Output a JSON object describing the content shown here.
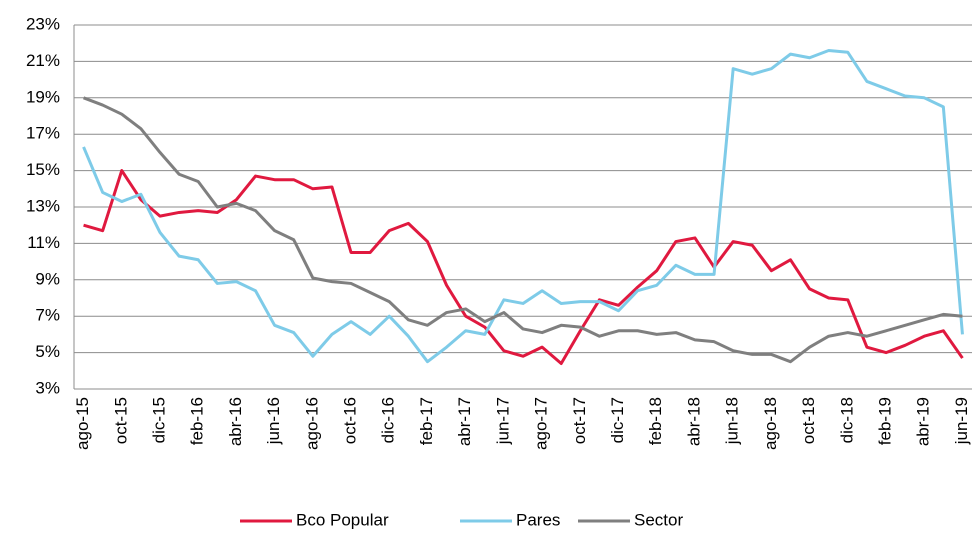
{
  "chart_data": {
    "type": "line",
    "categories": [
      "ago-15",
      null,
      "oct-15",
      null,
      "dic-15",
      null,
      "feb-16",
      null,
      "abr-16",
      null,
      "jun-16",
      null,
      "ago-16",
      null,
      "oct-16",
      null,
      "dic-16",
      null,
      "feb-17",
      null,
      "abr-17",
      null,
      "jun-17",
      null,
      "ago-17",
      null,
      "oct-17",
      null,
      "dic-17",
      null,
      "feb-18",
      null,
      "abr-18",
      null,
      "jun-18",
      null,
      "ago-18",
      null,
      "oct-18",
      null,
      "dic-18",
      null,
      "feb-19",
      null,
      "abr-19",
      null,
      "jun-19"
    ],
    "series": [
      {
        "name": "Bco Popular",
        "color": "#e0193f",
        "values": [
          12.0,
          11.7,
          15.0,
          13.4,
          12.5,
          12.7,
          12.8,
          12.7,
          13.4,
          14.7,
          14.5,
          14.5,
          14.0,
          14.1,
          10.5,
          10.5,
          11.7,
          12.1,
          11.1,
          8.7,
          7.0,
          6.4,
          5.1,
          4.8,
          5.3,
          4.4,
          6.2,
          7.9,
          7.6,
          8.6,
          9.5,
          11.1,
          11.3,
          9.7,
          11.1,
          10.9,
          9.5,
          10.1,
          8.5,
          8.0,
          7.9,
          5.3,
          5.0,
          5.4,
          5.9,
          6.2,
          4.7
        ]
      },
      {
        "name": "Pares",
        "color": "#7ecbe8",
        "values": [
          16.3,
          13.8,
          13.3,
          13.7,
          11.6,
          10.3,
          10.1,
          8.8,
          8.9,
          8.4,
          6.5,
          6.1,
          4.8,
          6.0,
          6.7,
          6.0,
          7.0,
          5.9,
          4.5,
          5.3,
          6.2,
          6.0,
          7.9,
          7.7,
          8.4,
          7.7,
          7.8,
          7.8,
          7.3,
          8.4,
          8.7,
          9.8,
          9.3,
          9.3,
          20.6,
          20.3,
          20.6,
          21.4,
          21.2,
          21.6,
          21.5,
          19.9,
          19.5,
          19.1,
          19.0,
          18.5,
          6.0
        ]
      },
      {
        "name": "Sector",
        "color": "#7f7f7f",
        "values": [
          19.0,
          18.6,
          18.1,
          17.3,
          16.0,
          14.8,
          14.4,
          13.0,
          13.2,
          12.8,
          11.7,
          11.2,
          9.1,
          8.9,
          8.8,
          8.3,
          7.8,
          6.8,
          6.5,
          7.2,
          7.4,
          6.7,
          7.2,
          6.3,
          6.1,
          6.5,
          6.4,
          5.9,
          6.2,
          6.2,
          6.0,
          6.1,
          5.7,
          5.6,
          5.1,
          4.9,
          4.9,
          4.5,
          5.3,
          5.9,
          6.1,
          5.9,
          6.2,
          6.5,
          6.8,
          7.1,
          7.0
        ]
      }
    ],
    "ylim": [
      3,
      23
    ],
    "yticks": [
      {
        "value": 3,
        "label": "3%"
      },
      {
        "value": 5,
        "label": "5%"
      },
      {
        "value": 7,
        "label": "7%"
      },
      {
        "value": 9,
        "label": "9%"
      },
      {
        "value": 11,
        "label": "11%"
      },
      {
        "value": 13,
        "label": "13%"
      },
      {
        "value": 15,
        "label": "15%"
      },
      {
        "value": 17,
        "label": "17%"
      },
      {
        "value": 19,
        "label": "19%"
      },
      {
        "value": 21,
        "label": "21%"
      },
      {
        "value": 23,
        "label": "23%"
      }
    ],
    "grid": true,
    "legend": "bottom"
  }
}
